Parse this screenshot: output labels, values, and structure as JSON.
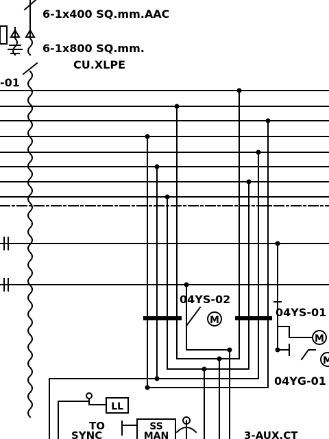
{
  "labels": {
    "aac_cable": "6-1x400 SQ.mm.AAC",
    "xlpe_cable_line1": "6-1x800 SQ.mm.",
    "xlpe_cable_line2": "CU.XLPE",
    "left_tag_fragment": "-01",
    "switch_04ys02": "04YS-02",
    "switch_04ys01": "04YS-01",
    "switch_04yg01": "04YG-01",
    "motor_symbol": "M",
    "ll_box": "LL",
    "to_sync_line1": "TO",
    "to_sync_line2": "SYNC",
    "ss_man_line1": "SS",
    "ss_man_line2": "MAN",
    "aux_ct": "3-AUX.CT"
  }
}
